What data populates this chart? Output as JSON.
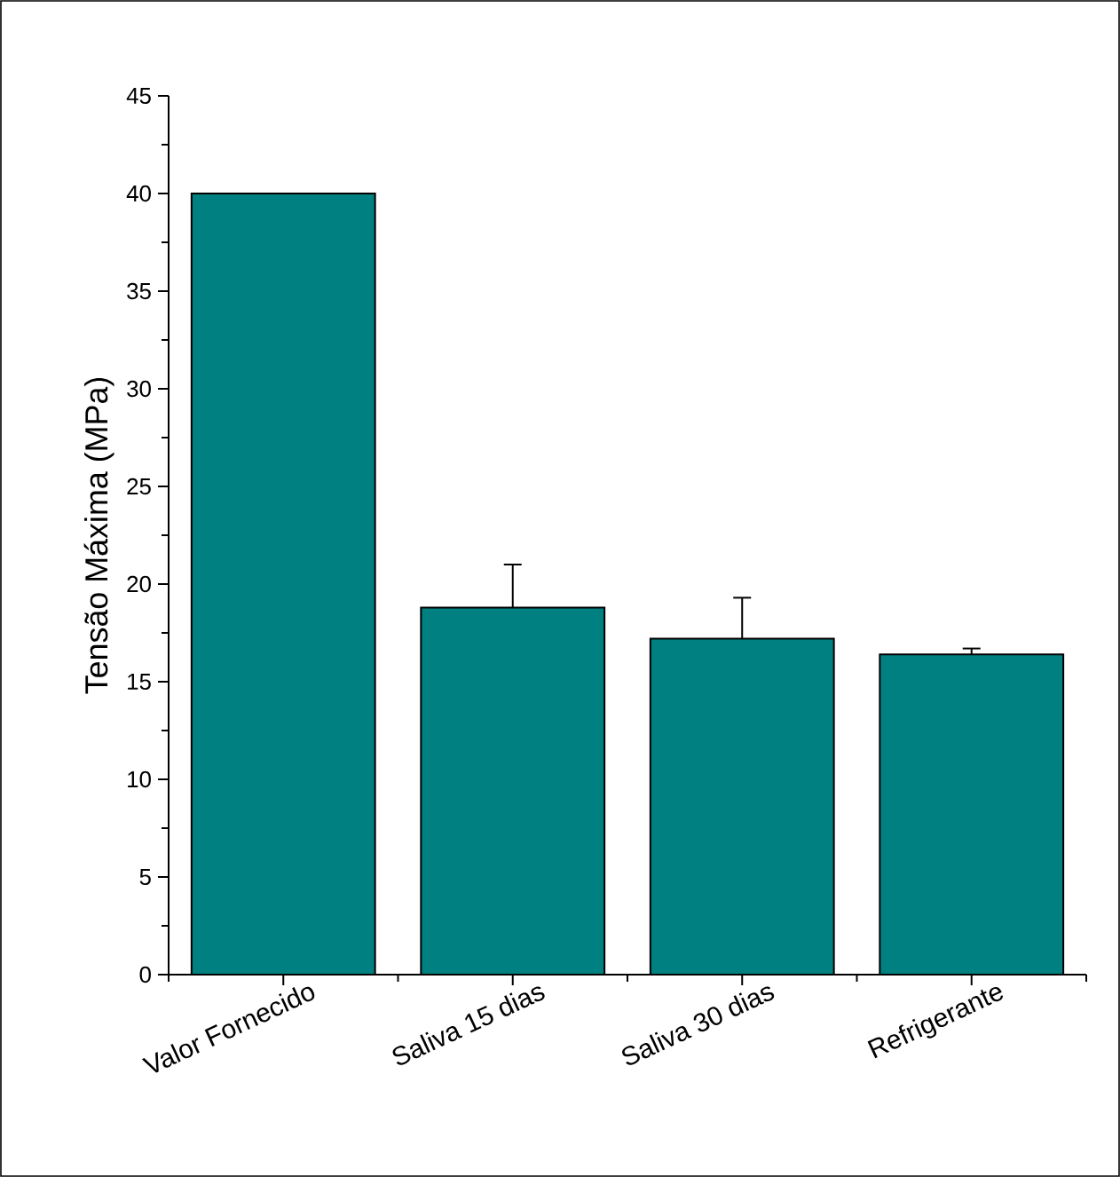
{
  "chart_data": {
    "type": "bar",
    "ylabel": "Tensão Máxima (MPa)",
    "categories": [
      "Valor Fornecido",
      "Saliva 15 dias",
      "Saliva 30 dias",
      "Refrigerante"
    ],
    "series": [
      {
        "color": "#008080",
        "values": [
          40,
          18.8,
          17.2,
          16.4
        ],
        "errors": [
          null,
          2.2,
          2.1,
          0.3
        ]
      }
    ],
    "ylim": [
      0,
      45
    ],
    "yticks": [
      0,
      5,
      10,
      15,
      20,
      25,
      30,
      35,
      40,
      45
    ]
  }
}
